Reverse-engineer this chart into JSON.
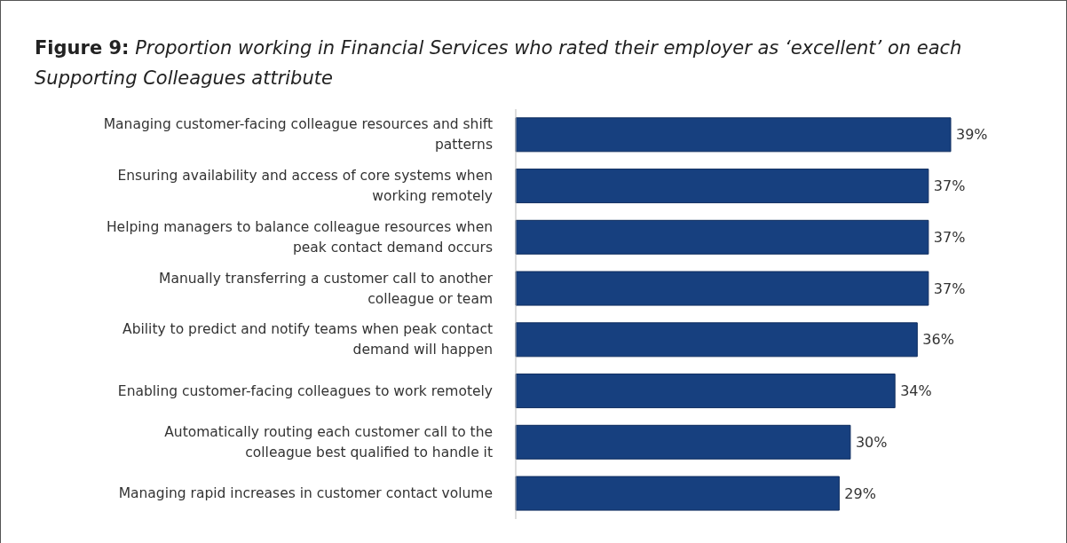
{
  "chart_data": {
    "type": "bar",
    "orientation": "horizontal",
    "title": "Figure 9: Proportion working in Financial Services who rated their employer as ‘excellent’ on each Supporting Colleagues attribute",
    "categories": [
      "Managing customer-facing colleague resources and shift patterns",
      "Ensuring availability and access of core systems when working remotely",
      "Helping managers to balance colleague resources when peak contact demand occurs",
      "Manually transferring a customer call to another colleague or team",
      "Ability to predict and notify teams when peak contact demand will happen",
      "Enabling customer-facing colleagues to work remotely",
      "Automatically routing each customer call to the colleague best qualified to handle it",
      "Managing rapid increases in customer contact volume"
    ],
    "values": [
      39,
      37,
      37,
      37,
      36,
      34,
      30,
      29
    ],
    "value_labels": [
      "39%",
      "37%",
      "37%",
      "37%",
      "36%",
      "34%",
      "30%",
      "29%"
    ],
    "color": "#17407f"
  }
}
